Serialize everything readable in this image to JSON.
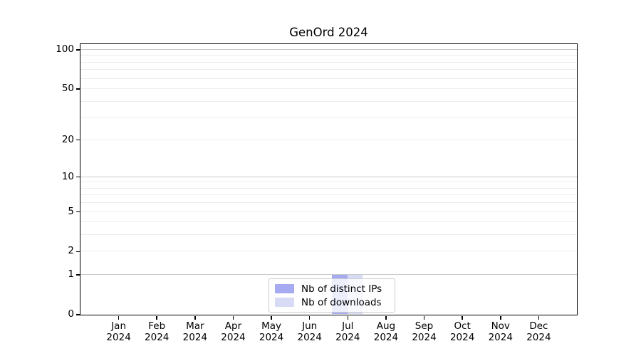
{
  "chart_data": {
    "type": "bar",
    "title": "GenOrd 2024",
    "x_categories": [
      "Jan",
      "Feb",
      "Mar",
      "Apr",
      "May",
      "Jun",
      "Jul",
      "Aug",
      "Sep",
      "Oct",
      "Nov",
      "Dec"
    ],
    "x_year": "2024",
    "series": [
      {
        "name": "Nb of distinct IPs",
        "color": "#a6aaf0",
        "values": [
          0,
          0,
          0,
          0,
          0,
          0,
          1,
          0,
          0,
          0,
          0,
          0
        ]
      },
      {
        "name": "Nb of downloads",
        "color": "#d8dbf5",
        "values": [
          0,
          0,
          0,
          0,
          0,
          0,
          1,
          0,
          0,
          0,
          0,
          0
        ]
      }
    ],
    "y_axis": {
      "scale": "log1p",
      "ticks": [
        0,
        1,
        2,
        5,
        10,
        20,
        50,
        100
      ],
      "max_value": 110.5,
      "major_gridlines": [
        1,
        10,
        100
      ],
      "minor_gridlines": [
        2,
        3,
        4,
        5,
        6,
        7,
        8,
        9,
        20,
        30,
        40,
        50,
        60,
        70,
        80,
        90
      ]
    },
    "legend": {
      "position": "bottom-center"
    },
    "colors": {
      "major_grid": "#c9c9c9",
      "minor_grid": "#ededed",
      "spine": "#000000",
      "text": "#000000"
    },
    "grid": "on"
  }
}
